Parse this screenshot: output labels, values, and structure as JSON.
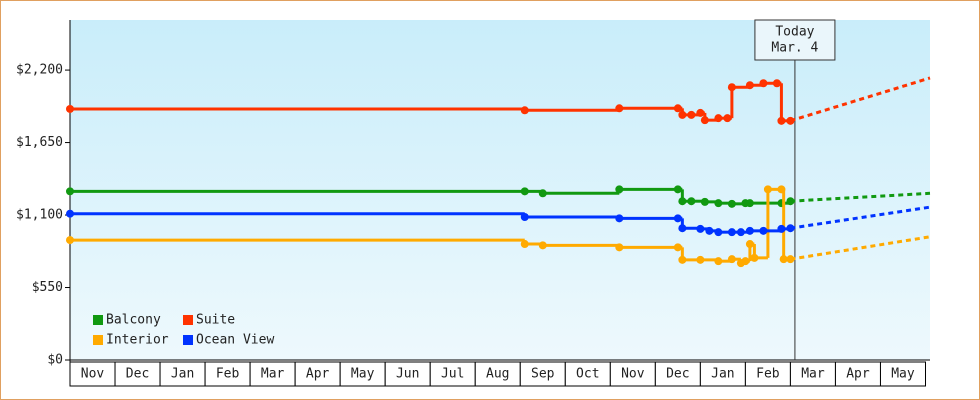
{
  "chart_data": {
    "type": "step",
    "xlim": [
      0,
      19.1
    ],
    "xticks": [
      {
        "value": 0.5,
        "label": "Nov"
      },
      {
        "value": 1.5,
        "label": "Dec"
      },
      {
        "value": 2.5,
        "label": "Jan"
      },
      {
        "value": 3.5,
        "label": "Feb"
      },
      {
        "value": 4.5,
        "label": "Mar"
      },
      {
        "value": 5.5,
        "label": "Apr"
      },
      {
        "value": 6.5,
        "label": "May"
      },
      {
        "value": 7.5,
        "label": "Jun"
      },
      {
        "value": 8.5,
        "label": "Jul"
      },
      {
        "value": 9.5,
        "label": "Aug"
      },
      {
        "value": 10.5,
        "label": "Sep"
      },
      {
        "value": 11.5,
        "label": "Oct"
      },
      {
        "value": 12.5,
        "label": "Nov"
      },
      {
        "value": 13.5,
        "label": "Dec"
      },
      {
        "value": 14.5,
        "label": "Jan"
      },
      {
        "value": 15.5,
        "label": "Feb"
      },
      {
        "value": 16.5,
        "label": "Mar"
      },
      {
        "value": 17.5,
        "label": "Apr"
      },
      {
        "value": 18.5,
        "label": "May"
      }
    ],
    "ylim": [
      0,
      2580
    ],
    "yticks": [
      {
        "value": 0,
        "label": "$0"
      },
      {
        "value": 550,
        "label": "$550"
      },
      {
        "value": 1100,
        "label": "$1,100"
      },
      {
        "value": 1650,
        "label": "$1,650"
      },
      {
        "value": 2200,
        "label": "$2,200"
      }
    ],
    "annotation": {
      "x": 16.1,
      "lines": [
        "Today",
        "Mar. 4"
      ]
    },
    "legend": "lower left",
    "series": [
      {
        "name": "Balcony",
        "color": "#119911",
        "x": [
          0,
          10.1,
          10.5,
          12.2,
          13.5,
          13.6,
          13.8,
          14.1,
          14.4,
          14.7,
          15.0,
          15.1,
          15.8,
          16.0
        ],
        "values": [
          1280,
          1280,
          1265,
          1295,
          1295,
          1205,
          1205,
          1200,
          1190,
          1185,
          1190,
          1190,
          1190,
          1205
        ],
        "projection": 1265
      },
      {
        "name": "Suite",
        "color": "#ff3300",
        "x": [
          0,
          10.1,
          12.2,
          13.5,
          13.6,
          13.8,
          14.0,
          14.1,
          14.4,
          14.6,
          14.7,
          15.1,
          15.4,
          15.7,
          15.8,
          16.0
        ],
        "values": [
          1905,
          1895,
          1910,
          1910,
          1860,
          1860,
          1875,
          1820,
          1835,
          1835,
          2070,
          2085,
          2100,
          2100,
          1815,
          1815
        ],
        "projection": 2140
      },
      {
        "name": "Interior",
        "color": "#ffaa00",
        "x": [
          0,
          10.1,
          10.5,
          12.2,
          13.5,
          13.6,
          14.0,
          14.4,
          14.7,
          14.9,
          15.0,
          15.1,
          15.2,
          15.5,
          15.8,
          15.85,
          16.0
        ],
        "values": [
          910,
          880,
          870,
          855,
          855,
          760,
          760,
          750,
          765,
          735,
          750,
          880,
          775,
          1295,
          1295,
          765,
          765
        ],
        "projection": 935
      },
      {
        "name": "Ocean View",
        "color": "#0033ff",
        "x": [
          0,
          10.1,
          12.2,
          13.5,
          13.6,
          14.0,
          14.2,
          14.4,
          14.7,
          14.9,
          15.1,
          15.4,
          15.8,
          16.0
        ],
        "values": [
          1110,
          1085,
          1075,
          1075,
          1000,
          995,
          980,
          970,
          970,
          970,
          980,
          980,
          995,
          1000
        ],
        "projection": 1160
      }
    ]
  }
}
